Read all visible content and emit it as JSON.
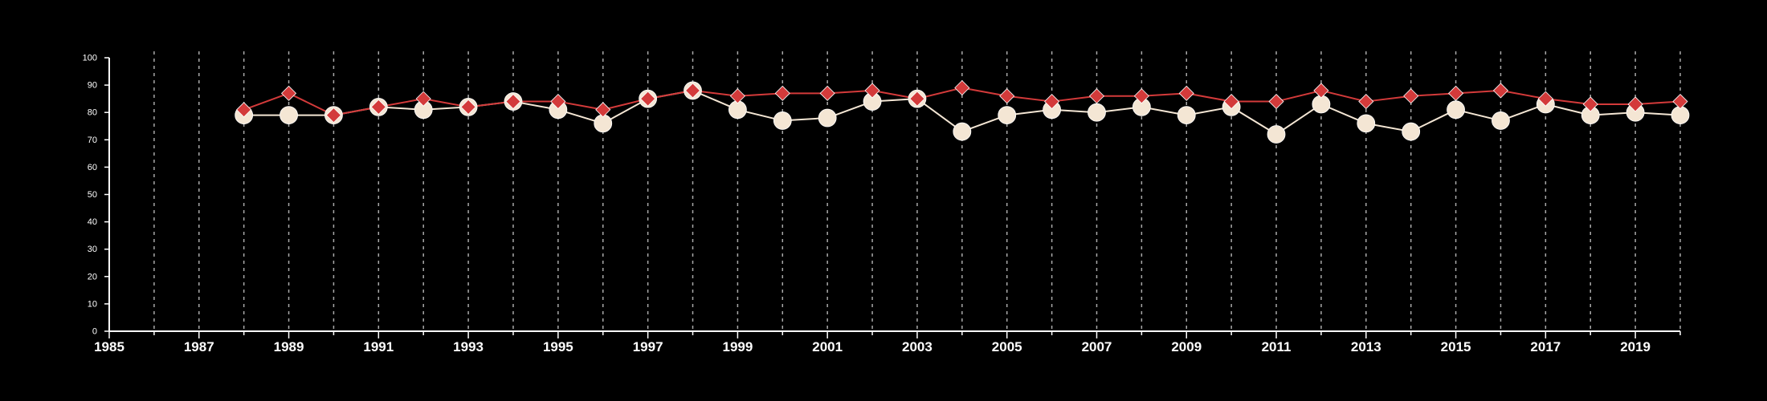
{
  "chart_data": {
    "type": "line",
    "title": "",
    "xlabel": "",
    "ylabel": "",
    "xlim": [
      1985,
      2020
    ],
    "ylim": [
      0,
      100
    ],
    "x_ticks": [
      1985,
      1987,
      1989,
      1991,
      1993,
      1995,
      1997,
      1999,
      2001,
      2003,
      2005,
      2007,
      2009,
      2011,
      2013,
      2015,
      2017,
      2019
    ],
    "y_ticks": [
      0,
      10,
      20,
      30,
      40,
      50,
      60,
      70,
      80,
      90,
      100
    ],
    "vertical_grid_years": [
      1986,
      1987,
      1988,
      1989,
      1990,
      1991,
      1992,
      1993,
      1994,
      1995,
      1996,
      1997,
      1998,
      1999,
      2000,
      2001,
      2002,
      2003,
      2004,
      2005,
      2006,
      2007,
      2008,
      2009,
      2010,
      2011,
      2012,
      2013,
      2014,
      2015,
      2016,
      2017,
      2018,
      2019,
      2020
    ],
    "x": [
      1988,
      1989,
      1990,
      1991,
      1992,
      1993,
      1994,
      1995,
      1996,
      1997,
      1998,
      1999,
      2000,
      2001,
      2002,
      2003,
      2004,
      2005,
      2006,
      2007,
      2008,
      2009,
      2010,
      2011,
      2012,
      2013,
      2014,
      2015,
      2016,
      2017,
      2018,
      2019,
      2020
    ],
    "series": [
      {
        "key": "red",
        "marker": "diamond",
        "color": "#d33a3a",
        "values": [
          81,
          87,
          79,
          82,
          85,
          82,
          84,
          84,
          81,
          85,
          88,
          86,
          87,
          87,
          88,
          85,
          89,
          86,
          84,
          86,
          86,
          87,
          84,
          84,
          88,
          84,
          86,
          87,
          88,
          85,
          83,
          83,
          84
        ]
      },
      {
        "key": "cream",
        "marker": "circle",
        "color": "#f4e6d4",
        "values": [
          79,
          79,
          79,
          82,
          81,
          82,
          84,
          81,
          76,
          85,
          88,
          81,
          77,
          78,
          84,
          85,
          73,
          79,
          81,
          80,
          82,
          79,
          82,
          72,
          83,
          76,
          73,
          81,
          77,
          83,
          79,
          80,
          79
        ]
      }
    ],
    "grid": "vertical dashed",
    "legend": "none"
  }
}
